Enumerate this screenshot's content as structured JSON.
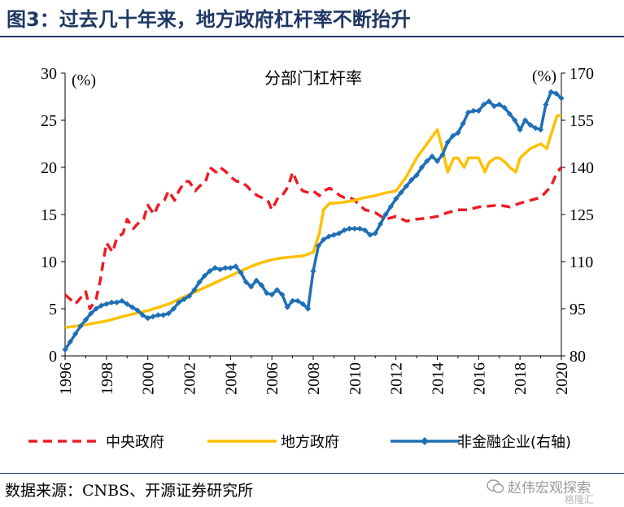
{
  "header": {
    "title": "图3：过去几十年来，地方政府杠杆率不断抬升"
  },
  "footer": {
    "source": "数据来源：CNBS、开源证券研究所",
    "watermark": "赵伟宏观探索",
    "watermark2": "格隆汇"
  },
  "colors": {
    "central": "#ee1c25",
    "local": "#ffc000",
    "corporate": "#1f6fb5",
    "header": "#1f3864"
  },
  "chart_data": {
    "type": "line",
    "title": "分部门杠杆率",
    "left_unit": "(%)",
    "right_unit": "(%)",
    "ylim": [
      0,
      30
    ],
    "ylim_right": [
      80,
      170
    ],
    "yticks": [
      "0",
      "5",
      "10",
      "15",
      "20",
      "25",
      "30"
    ],
    "yticks_right": [
      "80",
      "95",
      "110",
      "125",
      "140",
      "155",
      "170"
    ],
    "xlim": [
      1996,
      2020
    ],
    "xticks": [
      "1996",
      "1998",
      "2000",
      "2002",
      "2004",
      "2006",
      "2008",
      "2010",
      "2012",
      "2014",
      "2016",
      "2018",
      "2020"
    ],
    "legend_position": "bottom",
    "series": [
      {
        "name": "中央政府",
        "axis": "left",
        "style": "dashed",
        "color": "#ee1c25",
        "x": [
          1996.0,
          1996.5,
          1997.0,
          1997.2,
          1997.5,
          1997.7,
          1998.0,
          1998.3,
          1998.5,
          1998.8,
          1999.0,
          1999.3,
          1999.5,
          1999.8,
          2000.0,
          2000.3,
          2000.5,
          2000.8,
          2001.0,
          2001.3,
          2001.5,
          2001.8,
          2002.0,
          2002.3,
          2002.5,
          2002.8,
          2003.0,
          2003.3,
          2003.5,
          2003.8,
          2004.0,
          2004.3,
          2004.5,
          2004.8,
          2005.0,
          2005.3,
          2005.5,
          2005.8,
          2006.0,
          2006.3,
          2006.5,
          2006.8,
          2007.0,
          2007.3,
          2007.5,
          2007.8,
          2008.0,
          2008.3,
          2008.5,
          2008.8,
          2009.0,
          2009.3,
          2009.5,
          2009.8,
          2010.0,
          2010.5,
          2011.0,
          2011.5,
          2012.0,
          2012.5,
          2013.0,
          2013.5,
          2014.0,
          2014.5,
          2015.0,
          2015.5,
          2016.0,
          2016.5,
          2017.0,
          2017.5,
          2018.0,
          2018.5,
          2019.0,
          2019.3,
          2019.5,
          2019.8,
          2020.0
        ],
        "y": [
          6.5,
          5.5,
          6.8,
          5.0,
          6.0,
          8.0,
          12.0,
          11.0,
          12.5,
          13.0,
          14.5,
          13.5,
          14.0,
          14.5,
          16.0,
          15.0,
          16.0,
          16.5,
          17.5,
          16.5,
          17.5,
          18.5,
          18.5,
          17.5,
          18.0,
          18.5,
          20.0,
          19.5,
          20.0,
          19.5,
          19.0,
          18.5,
          18.5,
          18.0,
          17.5,
          17.0,
          16.8,
          16.5,
          15.5,
          16.8,
          17.0,
          18.0,
          19.5,
          18.0,
          17.5,
          17.3,
          17.5,
          17.0,
          17.5,
          17.8,
          17.5,
          17.0,
          16.8,
          16.8,
          16.5,
          15.5,
          15.2,
          14.5,
          14.8,
          14.3,
          14.5,
          14.6,
          14.8,
          15.2,
          15.5,
          15.5,
          15.8,
          15.9,
          16.0,
          15.8,
          16.2,
          16.5,
          16.8,
          17.5,
          18.0,
          19.5,
          20.0
        ]
      },
      {
        "name": "地方政府",
        "axis": "left",
        "style": "solid",
        "color": "#ffc000",
        "x": [
          1996.0,
          1997.0,
          1998.0,
          1999.0,
          2000.0,
          2001.0,
          2002.0,
          2003.0,
          2004.0,
          2004.5,
          2005.0,
          2005.5,
          2006.0,
          2006.5,
          2007.0,
          2007.5,
          2008.0,
          2008.3,
          2008.5,
          2008.8,
          2009.0,
          2009.5,
          2010.0,
          2010.5,
          2011.0,
          2011.5,
          2012.0,
          2012.5,
          2013.0,
          2013.5,
          2014.0,
          2014.3,
          2014.5,
          2014.8,
          2015.0,
          2015.3,
          2015.5,
          2015.8,
          2016.0,
          2016.3,
          2016.5,
          2016.8,
          2017.0,
          2017.3,
          2017.5,
          2017.8,
          2018.0,
          2018.5,
          2019.0,
          2019.3,
          2019.5,
          2019.8,
          2020.0
        ],
        "y": [
          3.0,
          3.3,
          3.7,
          4.3,
          4.8,
          5.5,
          6.5,
          7.5,
          8.5,
          9.0,
          9.5,
          9.9,
          10.2,
          10.4,
          10.5,
          10.6,
          11.0,
          13.0,
          15.5,
          16.2,
          16.2,
          16.3,
          16.5,
          16.8,
          17.0,
          17.3,
          17.5,
          19.0,
          21.0,
          22.5,
          24.0,
          21.5,
          19.5,
          21.0,
          21.0,
          20.0,
          21.0,
          21.0,
          21.0,
          19.5,
          20.5,
          21.0,
          21.0,
          20.5,
          20.0,
          19.5,
          21.0,
          22.0,
          22.5,
          22.0,
          23.5,
          25.5,
          25.5
        ]
      },
      {
        "name": "非金融企业(右轴)",
        "axis": "right",
        "style": "solid-marker",
        "color": "#1f6fb5",
        "x": [
          1996.0,
          1996.25,
          1996.5,
          1996.75,
          1997.0,
          1997.25,
          1997.5,
          1997.75,
          1998.0,
          1998.25,
          1998.5,
          1998.75,
          1999.0,
          1999.25,
          1999.5,
          1999.75,
          2000.0,
          2000.25,
          2000.5,
          2000.75,
          2001.0,
          2001.25,
          2001.5,
          2001.75,
          2002.0,
          2002.25,
          2002.5,
          2002.75,
          2003.0,
          2003.25,
          2003.5,
          2003.75,
          2004.0,
          2004.25,
          2004.5,
          2004.75,
          2005.0,
          2005.25,
          2005.5,
          2005.75,
          2006.0,
          2006.25,
          2006.5,
          2006.75,
          2007.0,
          2007.25,
          2007.5,
          2007.75,
          2008.0,
          2008.25,
          2008.5,
          2008.75,
          2009.0,
          2009.25,
          2009.5,
          2009.75,
          2010.0,
          2010.25,
          2010.5,
          2010.75,
          2011.0,
          2011.25,
          2011.5,
          2011.75,
          2012.0,
          2012.25,
          2012.5,
          2012.75,
          2013.0,
          2013.25,
          2013.5,
          2013.75,
          2014.0,
          2014.25,
          2014.5,
          2014.75,
          2015.0,
          2015.25,
          2015.5,
          2015.75,
          2016.0,
          2016.25,
          2016.5,
          2016.75,
          2017.0,
          2017.25,
          2017.5,
          2017.75,
          2018.0,
          2018.25,
          2018.5,
          2018.75,
          2019.0,
          2019.25,
          2019.5,
          2019.75,
          2020.0
        ],
        "y": [
          82.0,
          84.5,
          87.0,
          89.5,
          91.5,
          93.5,
          95.0,
          96.0,
          96.5,
          97.0,
          97.0,
          97.5,
          96.5,
          95.5,
          94.5,
          93.0,
          92.0,
          92.5,
          93.0,
          93.0,
          93.5,
          95.0,
          97.0,
          98.0,
          99.0,
          101.0,
          103.5,
          105.5,
          107.0,
          108.0,
          107.5,
          108.0,
          108.0,
          108.5,
          106.5,
          103.5,
          102.0,
          104.0,
          102.5,
          100.0,
          99.5,
          101.0,
          99.5,
          95.5,
          97.5,
          97.5,
          96.5,
          95.0,
          107.0,
          115.0,
          117.0,
          118.0,
          118.5,
          119.0,
          120.0,
          120.5,
          120.5,
          120.5,
          120.0,
          118.5,
          119.0,
          122.0,
          125.0,
          127.5,
          130.0,
          132.0,
          134.0,
          136.0,
          137.5,
          140.0,
          142.0,
          143.5,
          142.0,
          144.0,
          148.0,
          150.0,
          151.0,
          154.0,
          157.5,
          158.0,
          158.0,
          160.0,
          161.0,
          159.5,
          160.0,
          159.0,
          157.0,
          155.0,
          152.0,
          155.0,
          153.5,
          152.5,
          152.0,
          160.0,
          164.0,
          163.5,
          162.0
        ]
      }
    ]
  }
}
